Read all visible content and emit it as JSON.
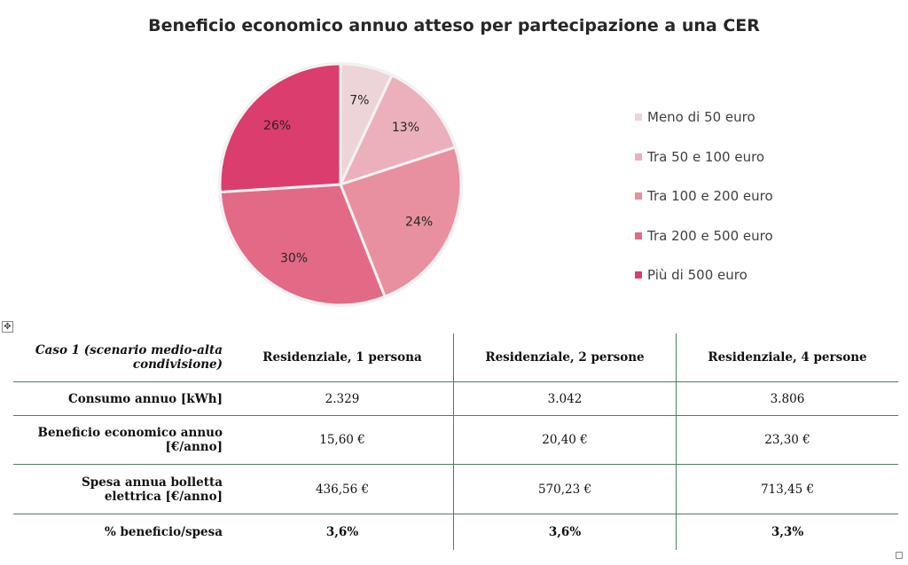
{
  "chart_data": {
    "type": "pie",
    "title": "Beneficio economico annuo atteso per partecipazione a una CER",
    "categories": [
      "Meno di 50 euro",
      "Tra 50 e 100 euro",
      "Tra 100 e 200 euro",
      "Tra 200 e 500 euro",
      "Più di 500 euro"
    ],
    "values": [
      7,
      13,
      24,
      30,
      26
    ],
    "labels": [
      "7%",
      "13%",
      "24%",
      "30%",
      "26%"
    ],
    "colors": [
      "#EDD4D8",
      "#EBB0BC",
      "#E8909F",
      "#E26A87",
      "#DB3D6E"
    ],
    "legend": "right"
  },
  "table": {
    "header": [
      "Caso 1 (scenario medio-alta condivisione)",
      "Residenziale, 1 persona",
      "Residenziale, 2 persone",
      "Residenziale, 4 persone"
    ],
    "rows": [
      [
        "Consumo annuo [kWh]",
        "2.329",
        "3.042",
        "3.806"
      ],
      [
        "Beneficio economico annuo [€/anno]",
        "15,60 €",
        "20,40 €",
        "23,30 €"
      ],
      [
        "Spesa annua bolletta elettrica [€/anno]",
        "436,56 €",
        "570,23 €",
        "713,45 €"
      ],
      [
        "% beneficio/spesa",
        "3,6%",
        "3,6%",
        "3,3%"
      ]
    ]
  },
  "icons": {
    "move": "move-handle-icon"
  }
}
